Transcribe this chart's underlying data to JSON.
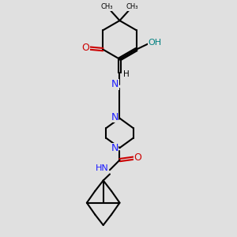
{
  "bg_color": "#e0e0e0",
  "atom_colors": {
    "C": "#000000",
    "N": "#1a1aff",
    "O": "#cc0000",
    "OH": "#008080"
  },
  "bond_lw": 1.5,
  "figsize": [
    3.0,
    3.0
  ],
  "dpi": 100,
  "xlim": [
    0,
    10
  ],
  "ylim": [
    0,
    10
  ]
}
